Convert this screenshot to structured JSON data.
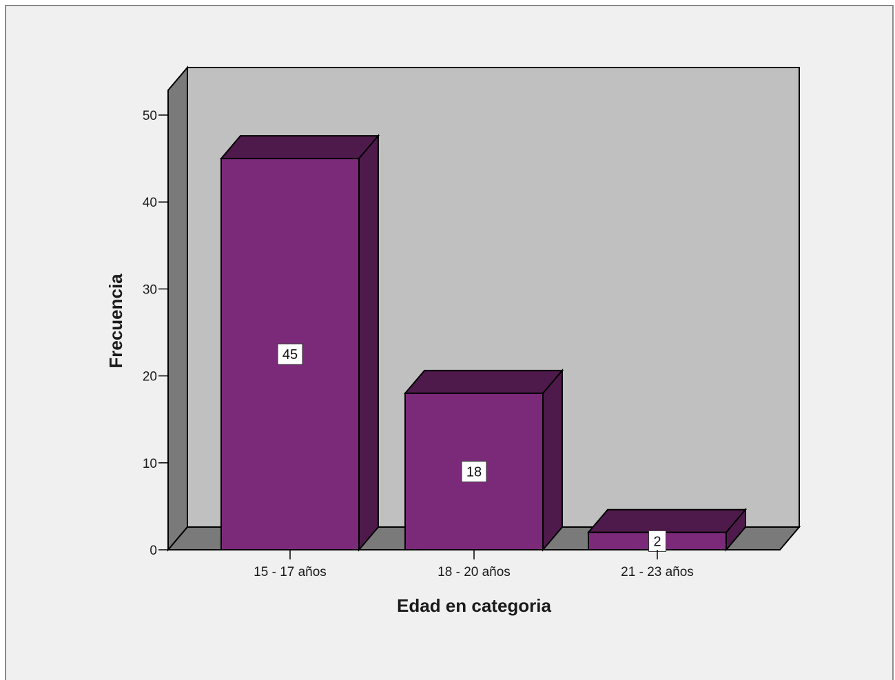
{
  "chart_data": {
    "type": "bar",
    "categories": [
      "15 - 17 años",
      "18 - 20 años",
      "21 - 23 años"
    ],
    "values": [
      45,
      18,
      2
    ],
    "data_labels": [
      "45",
      "18",
      "2"
    ],
    "xlabel": "Edad en categoria",
    "ylabel": "Frecuencia",
    "ylim": [
      0,
      50
    ],
    "yticks": [
      0,
      10,
      20,
      30,
      40,
      50
    ],
    "ytick_labels": [
      "0",
      "10",
      "20",
      "30",
      "40",
      "50"
    ],
    "grid": false,
    "style": "3d",
    "colors": {
      "bar_front": "#7b2a7a",
      "bar_side": "#4e1a4b",
      "bar_top": "#4e1a4b",
      "back_wall": "#c0c0c0",
      "side_wall": "#7a7a7a",
      "floor": "#7a7a7a",
      "outline": "#000000",
      "background": "#f0f0f0"
    }
  }
}
